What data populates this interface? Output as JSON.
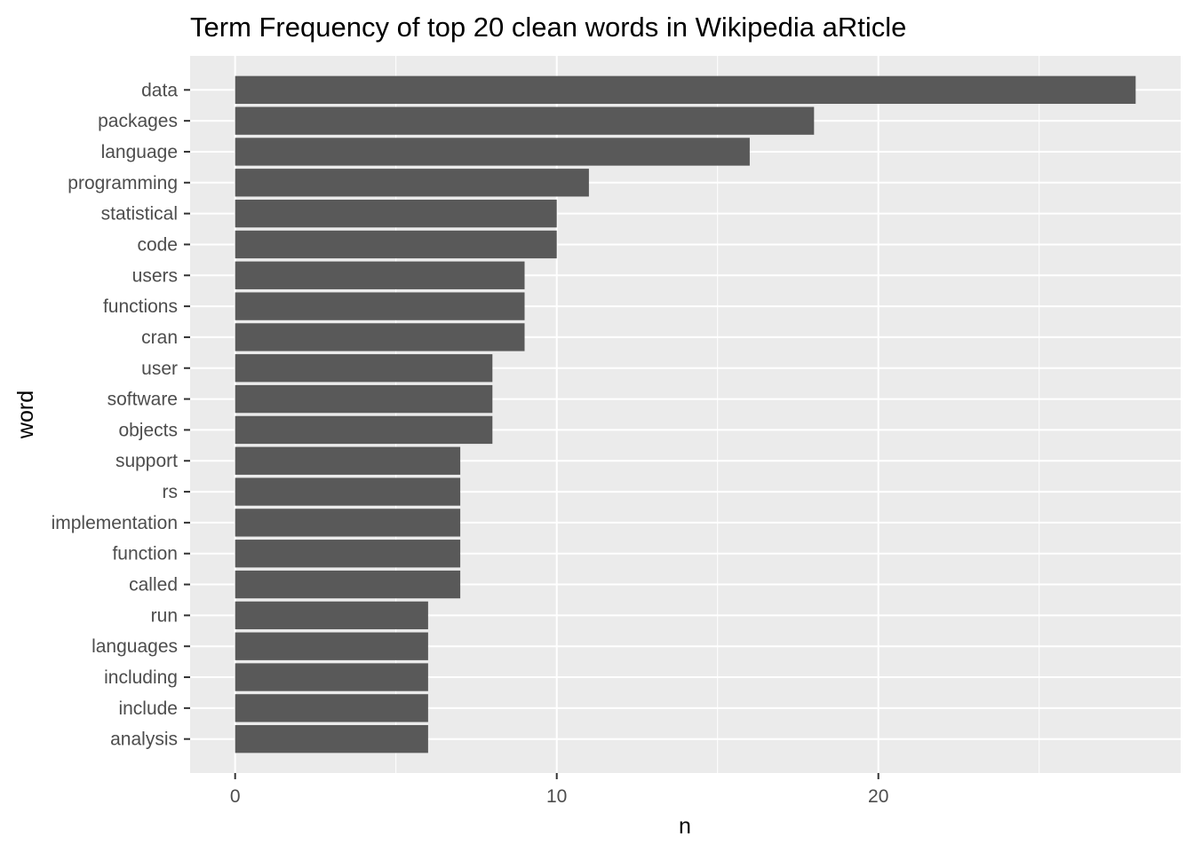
{
  "chart_data": {
    "type": "bar",
    "orientation": "horizontal",
    "title": "Term Frequency of top 20 clean words in Wikipedia aRticle",
    "xlabel": "n",
    "ylabel": "word",
    "categories": [
      "data",
      "packages",
      "language",
      "programming",
      "statistical",
      "code",
      "users",
      "functions",
      "cran",
      "user",
      "software",
      "objects",
      "support",
      "rs",
      "implementation",
      "function",
      "called",
      "run",
      "languages",
      "including",
      "include",
      "analysis"
    ],
    "values": [
      28,
      18,
      16,
      11,
      10,
      10,
      9,
      9,
      9,
      8,
      8,
      8,
      7,
      7,
      7,
      7,
      7,
      6,
      6,
      6,
      6,
      6
    ],
    "xlim": [
      -1.4,
      29.4
    ],
    "x_ticks": [
      0,
      10,
      20
    ],
    "x_tick_labels": [
      "0",
      "10",
      "20"
    ],
    "x_minor_ticks": [
      5,
      15,
      25
    ],
    "grid": true,
    "colors": {
      "bar": "#595959",
      "panel_background": "#ebebeb",
      "grid": "#ffffff",
      "tick_text": "#4d4d4d",
      "tick_mark": "#333333"
    }
  }
}
